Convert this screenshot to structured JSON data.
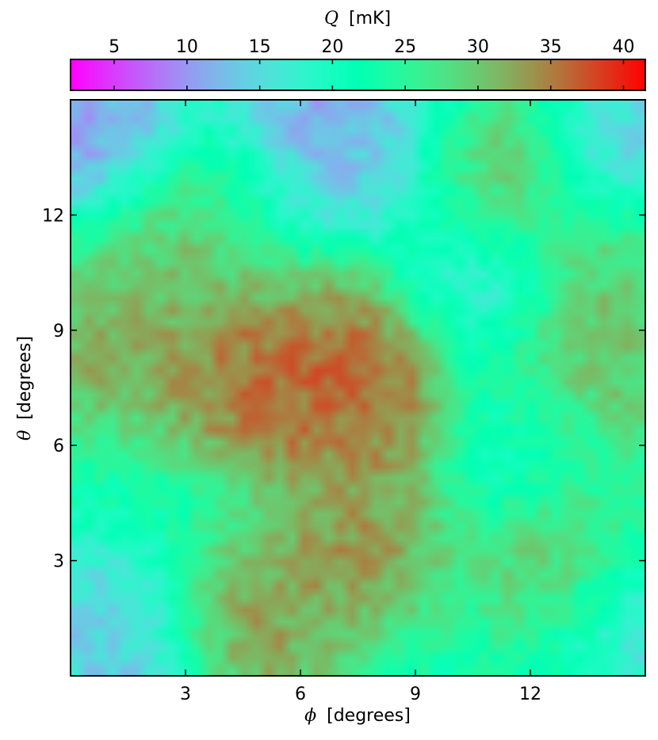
{
  "chart_data": {
    "type": "heatmap",
    "colormap": "rainbow",
    "colorbar": {
      "label_symbol": "Q",
      "label_unit": "[mK]",
      "range": [
        2,
        41.5
      ],
      "ticks": [
        5,
        10,
        15,
        20,
        25,
        30,
        35,
        40
      ],
      "placement": "top"
    },
    "xlabel_symbol": "ϕ",
    "xlabel_text": "[degrees]",
    "ylabel_symbol": "θ",
    "ylabel_text": "[degrees]",
    "xlim": [
      0,
      15
    ],
    "ylim": [
      0,
      15
    ],
    "xticks": [
      3,
      6,
      9,
      12
    ],
    "yticks": [
      3,
      6,
      9,
      12
    ],
    "grid": false,
    "field_resolution": [
      48,
      48
    ],
    "hotspots": [
      {
        "phi": 5.5,
        "theta": 7.5,
        "value": 39
      },
      {
        "phi": 8.0,
        "theta": 7.2,
        "value": 39
      },
      {
        "phi": 4.0,
        "theta": 8.2,
        "value": 37
      },
      {
        "phi": 7.0,
        "theta": 8.8,
        "value": 37
      },
      {
        "phi": 0.6,
        "theta": 8.6,
        "value": 35
      },
      {
        "phi": 3.5,
        "theta": 12.0,
        "value": 35
      },
      {
        "phi": 10.8,
        "theta": 12.8,
        "value": 36
      },
      {
        "phi": 13.3,
        "theta": 7.8,
        "value": 36
      },
      {
        "phi": 7.5,
        "theta": 3.4,
        "value": 37
      },
      {
        "phi": 13.0,
        "theta": 2.8,
        "value": 34
      },
      {
        "phi": 4.8,
        "theta": 1.3,
        "value": 36
      },
      {
        "phi": 2.0,
        "theta": 11.0,
        "value": 31
      },
      {
        "phi": 14.0,
        "theta": 10.8,
        "value": 33
      }
    ],
    "coldspots": [
      {
        "phi": 6.6,
        "theta": 14.4,
        "value": 6
      },
      {
        "phi": 1.0,
        "theta": 13.8,
        "value": 8
      },
      {
        "phi": 0.3,
        "theta": 14.6,
        "value": 9
      },
      {
        "phi": 8.5,
        "theta": 13.2,
        "value": 13
      },
      {
        "phi": 10.8,
        "theta": 10.5,
        "value": 13
      },
      {
        "phi": 14.6,
        "theta": 13.5,
        "value": 11
      },
      {
        "phi": 14.6,
        "theta": 1.5,
        "value": 12
      },
      {
        "phi": 1.0,
        "theta": 0.8,
        "value": 13
      },
      {
        "phi": 0.5,
        "theta": 0.2,
        "value": 12
      },
      {
        "phi": 5.0,
        "theta": 12.8,
        "value": 16
      },
      {
        "phi": 12.0,
        "theta": 6.5,
        "value": 18
      }
    ],
    "background_value": 22
  }
}
